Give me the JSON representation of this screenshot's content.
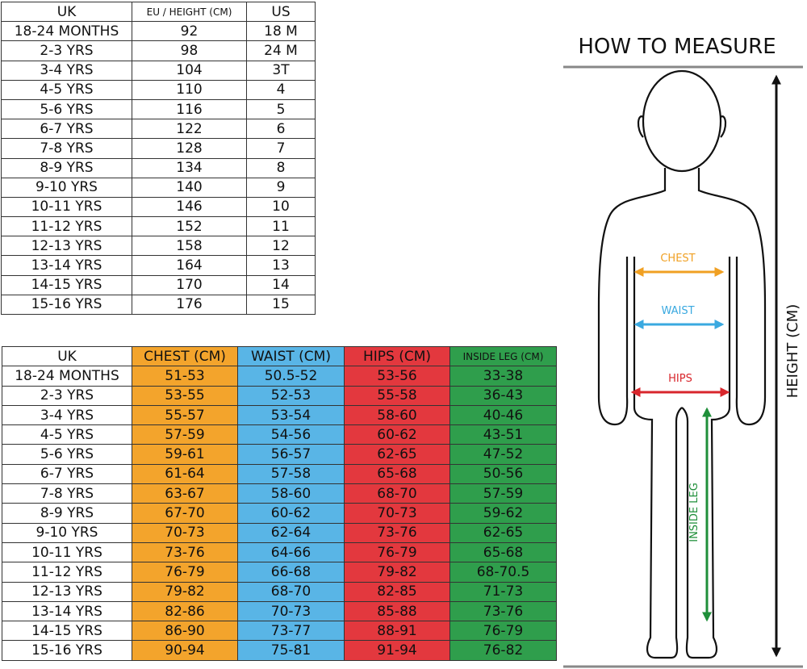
{
  "size_table": {
    "headers": [
      "UK",
      "EU / HEIGHT (CM)",
      "US"
    ],
    "rows": [
      [
        "18-24 MONTHS",
        "92",
        "18 M"
      ],
      [
        "2-3 YRS",
        "98",
        "24 M"
      ],
      [
        "3-4 YRS",
        "104",
        "3T"
      ],
      [
        "4-5 YRS",
        "110",
        "4"
      ],
      [
        "5-6 YRS",
        "116",
        "5"
      ],
      [
        "6-7 YRS",
        "122",
        "6"
      ],
      [
        "7-8 YRS",
        "128",
        "7"
      ],
      [
        "8-9 YRS",
        "134",
        "8"
      ],
      [
        "9-10 YRS",
        "140",
        "9"
      ],
      [
        "10-11 YRS",
        "146",
        "10"
      ],
      [
        "11-12 YRS",
        "152",
        "11"
      ],
      [
        "12-13 YRS",
        "158",
        "12"
      ],
      [
        "13-14 YRS",
        "164",
        "13"
      ],
      [
        "14-15 YRS",
        "170",
        "14"
      ],
      [
        "15-16 YRS",
        "176",
        "15"
      ]
    ]
  },
  "measurement_table": {
    "headers": [
      "UK",
      "CHEST (CM)",
      "WAIST (CM)",
      "HIPS (CM)",
      "INSIDE LEG (CM)"
    ],
    "rows": [
      [
        "18-24 MONTHS",
        "51-53",
        "50.5-52",
        "53-56",
        "33-38"
      ],
      [
        "2-3 YRS",
        "53-55",
        "52-53",
        "55-58",
        "36-43"
      ],
      [
        "3-4 YRS",
        "55-57",
        "53-54",
        "58-60",
        "40-46"
      ],
      [
        "4-5 YRS",
        "57-59",
        "54-56",
        "60-62",
        "43-51"
      ],
      [
        "5-6 YRS",
        "59-61",
        "56-57",
        "62-65",
        "47-52"
      ],
      [
        "6-7 YRS",
        "61-64",
        "57-58",
        "65-68",
        "50-56"
      ],
      [
        "7-8 YRS",
        "63-67",
        "58-60",
        "68-70",
        "57-59"
      ],
      [
        "8-9 YRS",
        "67-70",
        "60-62",
        "70-73",
        "59-62"
      ],
      [
        "9-10 YRS",
        "70-73",
        "62-64",
        "73-76",
        "62-65"
      ],
      [
        "10-11 YRS",
        "73-76",
        "64-66",
        "76-79",
        "65-68"
      ],
      [
        "11-12 YRS",
        "76-79",
        "66-68",
        "79-82",
        "68-70.5"
      ],
      [
        "12-13 YRS",
        "79-82",
        "68-70",
        "82-85",
        "71-73"
      ],
      [
        "13-14 YRS",
        "82-86",
        "70-73",
        "85-88",
        "73-76"
      ],
      [
        "14-15 YRS",
        "86-90",
        "73-77",
        "88-91",
        "76-79"
      ],
      [
        "15-16 YRS",
        "90-94",
        "75-81",
        "91-94",
        "76-82"
      ]
    ]
  },
  "figure": {
    "title": "HOW TO MEASURE",
    "chest": "CHEST",
    "waist": "WAIST",
    "hips": "HIPS",
    "inside_leg": "INSIDE LEG",
    "height": "HEIGHT (CM)"
  }
}
